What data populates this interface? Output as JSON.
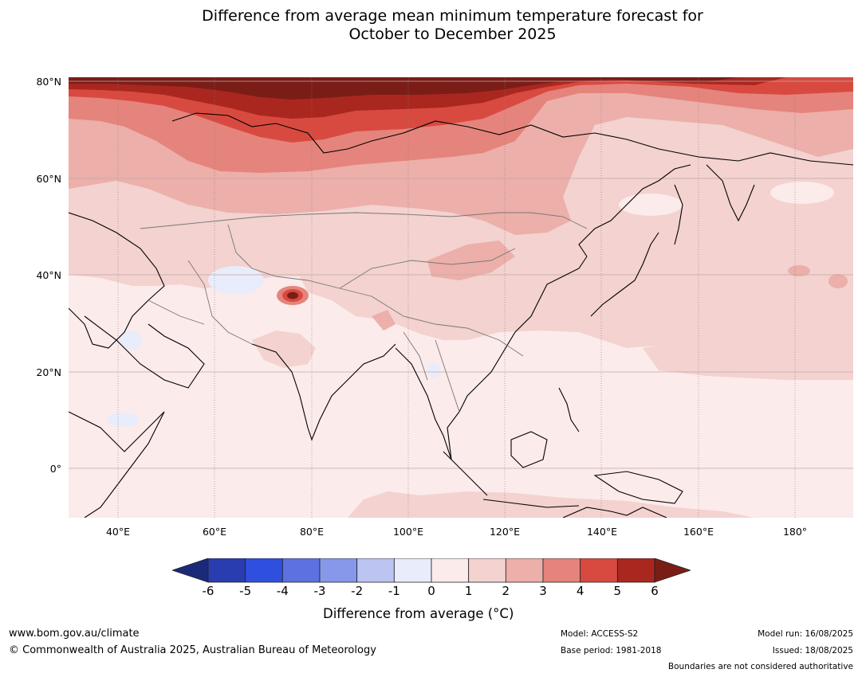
{
  "title": {
    "line1": "Difference from average mean minimum temperature forecast for",
    "line2": "October to December 2025"
  },
  "map": {
    "region": "Asia",
    "latitude_labels": [
      "80°N",
      "60°N",
      "40°N",
      "20°N",
      "0°"
    ],
    "longitude_labels": [
      "40°E",
      "60°E",
      "80°E",
      "100°E",
      "120°E",
      "140°E",
      "160°E",
      "180°"
    ],
    "hotspot_value_range": "> 6"
  },
  "colorbar": {
    "ticks": [
      "-6",
      "-5",
      "-4",
      "-3",
      "-2",
      "-1",
      "0",
      "1",
      "2",
      "3",
      "4",
      "5",
      "6"
    ],
    "colors": [
      "#1b2a78",
      "#2a3db0",
      "#2f4fdf",
      "#5d72e0",
      "#8797ea",
      "#bcc4f2",
      "#e9ecfb",
      "#fbebea",
      "#f3d2cf",
      "#ecafa9",
      "#e5847c",
      "#d84a40",
      "#a9271f",
      "#7a1d17"
    ],
    "label": "Difference from average (°C)"
  },
  "footer": {
    "website": "www.bom.gov.au/climate",
    "copyright": "© Commonwealth of Australia 2025, Australian Bureau of Meteorology",
    "model": "Model: ACCESS-S2",
    "base_period": "Base period: 1981-2018",
    "model_run": "Model run: 16/08/2025",
    "issued": "Issued: 18/08/2025",
    "disclaimer": "Boundaries are not considered authoritative"
  }
}
